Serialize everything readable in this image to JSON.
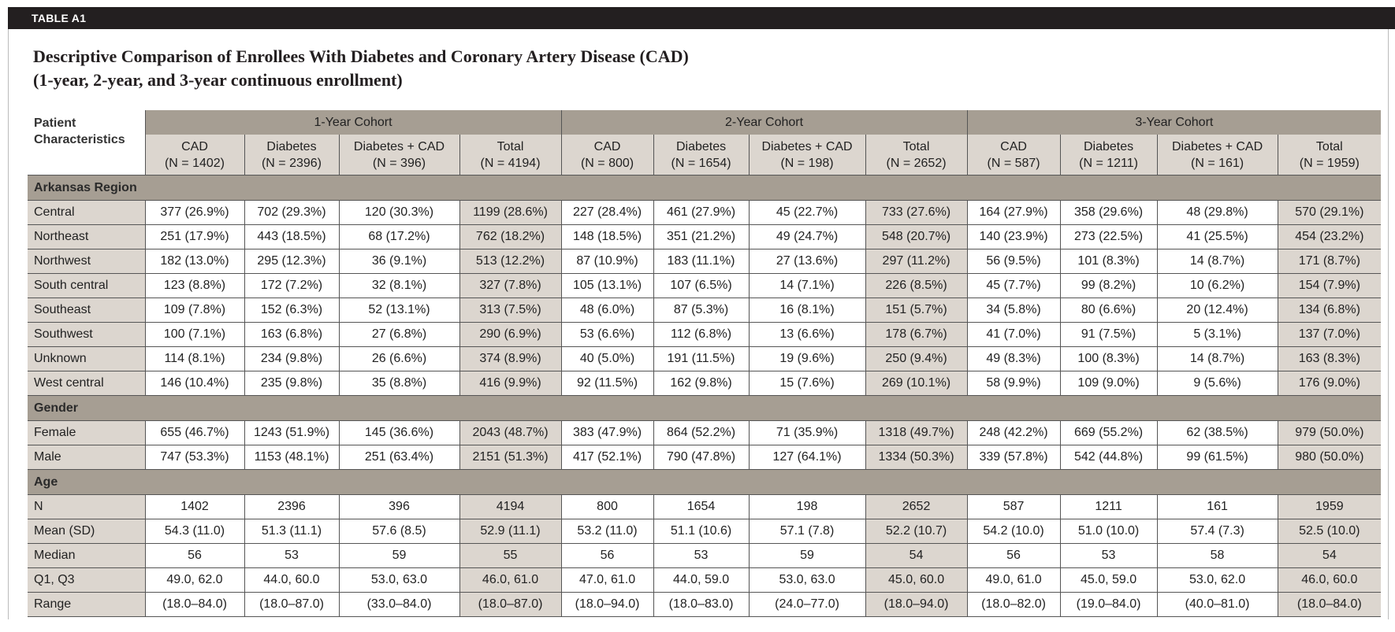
{
  "table_label": "TABLE A1",
  "title_line1": "Descriptive Comparison of Enrollees With Diabetes and Coronary Artery Disease (CAD)",
  "title_line2": "(1-year, 2-year, and 3-year continuous enrollment)",
  "corner_header": [
    "Patient",
    "Characteristics"
  ],
  "cohorts": [
    {
      "label": "1-Year Cohort",
      "columns": [
        [
          "CAD",
          "(N = 1402)"
        ],
        [
          "Diabetes",
          "(N = 2396)"
        ],
        [
          "Diabetes + CAD",
          "(N = 396)"
        ],
        [
          "Total",
          "(N = 4194)"
        ]
      ]
    },
    {
      "label": "2-Year Cohort",
      "columns": [
        [
          "CAD",
          "(N = 800)"
        ],
        [
          "Diabetes",
          "(N = 1654)"
        ],
        [
          "Diabetes + CAD",
          "(N = 198)"
        ],
        [
          "Total",
          "(N = 2652)"
        ]
      ]
    },
    {
      "label": "3-Year Cohort",
      "columns": [
        [
          "CAD",
          "(N = 587)"
        ],
        [
          "Diabetes",
          "(N = 1211)"
        ],
        [
          "Diabetes + CAD",
          "(N = 161)"
        ],
        [
          "Total",
          "(N = 1959)"
        ]
      ]
    }
  ],
  "sections": [
    {
      "label": "Arkansas Region",
      "rows": [
        {
          "label": "Central",
          "values": [
            "377 (26.9%)",
            "702 (29.3%)",
            "120 (30.3%)",
            "1199 (28.6%)",
            "227 (28.4%)",
            "461 (27.9%)",
            "45 (22.7%)",
            "733 (27.6%)",
            "164 (27.9%)",
            "358 (29.6%)",
            "48 (29.8%)",
            "570 (29.1%)"
          ]
        },
        {
          "label": "Northeast",
          "values": [
            "251 (17.9%)",
            "443 (18.5%)",
            "68 (17.2%)",
            "762 (18.2%)",
            "148 (18.5%)",
            "351 (21.2%)",
            "49 (24.7%)",
            "548 (20.7%)",
            "140 (23.9%)",
            "273 (22.5%)",
            "41 (25.5%)",
            "454 (23.2%)"
          ]
        },
        {
          "label": "Northwest",
          "values": [
            "182 (13.0%)",
            "295 (12.3%)",
            "36 (9.1%)",
            "513 (12.2%)",
            "87 (10.9%)",
            "183 (11.1%)",
            "27 (13.6%)",
            "297 (11.2%)",
            "56 (9.5%)",
            "101 (8.3%)",
            "14 (8.7%)",
            "171 (8.7%)"
          ]
        },
        {
          "label": "South central",
          "values": [
            "123 (8.8%)",
            "172 (7.2%)",
            "32 (8.1%)",
            "327 (7.8%)",
            "105 (13.1%)",
            "107 (6.5%)",
            "14 (7.1%)",
            "226 (8.5%)",
            "45 (7.7%)",
            "99 (8.2%)",
            "10 (6.2%)",
            "154 (7.9%)"
          ]
        },
        {
          "label": "Southeast",
          "values": [
            "109 (7.8%)",
            "152 (6.3%)",
            "52 (13.1%)",
            "313 (7.5%)",
            "48 (6.0%)",
            "87 (5.3%)",
            "16 (8.1%)",
            "151 (5.7%)",
            "34 (5.8%)",
            "80 (6.6%)",
            "20 (12.4%)",
            "134 (6.8%)"
          ]
        },
        {
          "label": "Southwest",
          "values": [
            "100 (7.1%)",
            "163 (6.8%)",
            "27 (6.8%)",
            "290 (6.9%)",
            "53 (6.6%)",
            "112 (6.8%)",
            "13 (6.6%)",
            "178 (6.7%)",
            "41 (7.0%)",
            "91 (7.5%)",
            "5 (3.1%)",
            "137 (7.0%)"
          ]
        },
        {
          "label": "Unknown",
          "values": [
            "114 (8.1%)",
            "234 (9.8%)",
            "26 (6.6%)",
            "374 (8.9%)",
            "40 (5.0%)",
            "191 (11.5%)",
            "19 (9.6%)",
            "250 (9.4%)",
            "49 (8.3%)",
            "100 (8.3%)",
            "14 (8.7%)",
            "163 (8.3%)"
          ]
        },
        {
          "label": "West central",
          "values": [
            "146 (10.4%)",
            "235 (9.8%)",
            "35 (8.8%)",
            "416 (9.9%)",
            "92 (11.5%)",
            "162 (9.8%)",
            "15 (7.6%)",
            "269 (10.1%)",
            "58 (9.9%)",
            "109 (9.0%)",
            "9 (5.6%)",
            "176 (9.0%)"
          ]
        }
      ]
    },
    {
      "label": "Gender",
      "rows": [
        {
          "label": "Female",
          "values": [
            "655 (46.7%)",
            "1243 (51.9%)",
            "145 (36.6%)",
            "2043 (48.7%)",
            "383 (47.9%)",
            "864 (52.2%)",
            "71 (35.9%)",
            "1318 (49.7%)",
            "248 (42.2%)",
            "669 (55.2%)",
            "62 (38.5%)",
            "979 (50.0%)"
          ]
        },
        {
          "label": "Male",
          "values": [
            "747 (53.3%)",
            "1153 (48.1%)",
            "251 (63.4%)",
            "2151 (51.3%)",
            "417 (52.1%)",
            "790 (47.8%)",
            "127 (64.1%)",
            "1334 (50.3%)",
            "339 (57.8%)",
            "542 (44.8%)",
            "99 (61.5%)",
            "980 (50.0%)"
          ]
        }
      ]
    },
    {
      "label": "Age",
      "rows": [
        {
          "label": "N",
          "values": [
            "1402",
            "2396",
            "396",
            "4194",
            "800",
            "1654",
            "198",
            "2652",
            "587",
            "1211",
            "161",
            "1959"
          ]
        },
        {
          "label": "Mean (SD)",
          "values": [
            "54.3 (11.0)",
            "51.3 (11.1)",
            "57.6 (8.5)",
            "52.9 (11.1)",
            "53.2 (11.0)",
            "51.1 (10.6)",
            "57.1 (7.8)",
            "52.2 (10.7)",
            "54.2 (10.0)",
            "51.0 (10.0)",
            "57.4 (7.3)",
            "52.5 (10.0)"
          ]
        },
        {
          "label": "Median",
          "values": [
            "56",
            "53",
            "59",
            "55",
            "56",
            "53",
            "59",
            "54",
            "56",
            "53",
            "58",
            "54"
          ]
        },
        {
          "label": "Q1, Q3",
          "values": [
            "49.0, 62.0",
            "44.0, 60.0",
            "53.0, 63.0",
            "46.0, 61.0",
            "47.0, 61.0",
            "44.0, 59.0",
            "53.0, 63.0",
            "45.0, 60.0",
            "49.0, 61.0",
            "45.0, 59.0",
            "53.0, 62.0",
            "46.0, 60.0"
          ]
        },
        {
          "label": "Range",
          "values": [
            "(18.0–84.0)",
            "(18.0–87.0)",
            "(33.0–84.0)",
            "(18.0–87.0)",
            "(18.0–94.0)",
            "(18.0–83.0)",
            "(24.0–77.0)",
            "(18.0–94.0)",
            "(18.0–82.0)",
            "(19.0–84.0)",
            "(40.0–81.0)",
            "(18.0–84.0)"
          ]
        }
      ]
    }
  ]
}
